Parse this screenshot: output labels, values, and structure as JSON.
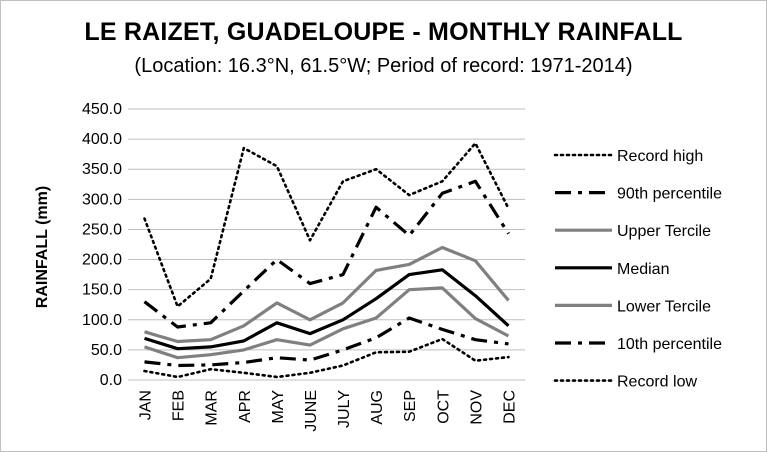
{
  "chart_data": {
    "type": "line",
    "title": "LE RAIZET, GUADELOUPE - MONTHLY RAINFALL",
    "subtitle": "(Location: 16.3°N, 61.5°W; Period of record: 1971-2014)",
    "xlabel": "",
    "ylabel": "RAINFALL (mm)",
    "ylim": [
      0,
      450
    ],
    "yticks": [
      "0.0",
      "50.0",
      "100.0",
      "150.0",
      "200.0",
      "250.0",
      "300.0",
      "350.0",
      "400.0",
      "450.0"
    ],
    "categories": [
      "JAN",
      "FEB",
      "MAR",
      "APR",
      "MAY",
      "JUNE",
      "JULY",
      "AUG",
      "SEP",
      "OCT",
      "NOV",
      "DEC"
    ],
    "grid": true,
    "legend_position": "right",
    "series": [
      {
        "name": "Record high",
        "style": "dotted",
        "color": "#000000",
        "values": [
          268,
          122,
          168,
          385,
          355,
          232,
          330,
          350,
          307,
          330,
          393,
          285
        ]
      },
      {
        "name": "90th percentile",
        "style": "dashdot",
        "color": "#000000",
        "values": [
          130,
          88,
          95,
          148,
          200,
          160,
          175,
          287,
          240,
          310,
          330,
          243
        ]
      },
      {
        "name": "Upper Tercile",
        "style": "solid",
        "color": "#808080",
        "values": [
          80,
          64,
          67,
          90,
          128,
          100,
          128,
          182,
          192,
          220,
          198,
          132
        ]
      },
      {
        "name": "Median",
        "style": "solid",
        "color": "#000000",
        "values": [
          69,
          52,
          55,
          65,
          95,
          77,
          100,
          135,
          175,
          183,
          140,
          90
        ]
      },
      {
        "name": "Lower Tercile",
        "style": "solid",
        "color": "#808080",
        "values": [
          55,
          37,
          42,
          50,
          67,
          58,
          85,
          103,
          150,
          153,
          102,
          73
        ]
      },
      {
        "name": "10th percentile",
        "style": "dashdot",
        "color": "#000000",
        "values": [
          30,
          24,
          25,
          29,
          37,
          33,
          50,
          70,
          103,
          84,
          67,
          60
        ]
      },
      {
        "name": "Record low",
        "style": "dotted",
        "color": "#000000",
        "values": [
          15,
          5,
          18,
          12,
          5,
          12,
          24,
          46,
          47,
          68,
          32,
          38
        ]
      }
    ]
  }
}
